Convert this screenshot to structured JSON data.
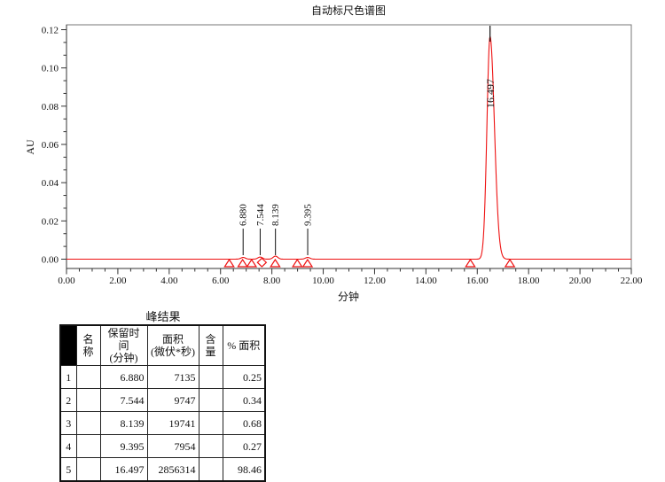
{
  "page": {
    "background": "#ffffff"
  },
  "chart_data": {
    "type": "line",
    "title": "自动标尺色谱图",
    "xlabel": "分钟",
    "ylabel": "AU",
    "xlim": [
      0,
      22
    ],
    "ylim": [
      -0.005,
      0.1225
    ],
    "grid": false,
    "legend": "none",
    "trace_color": "#ee1111",
    "axis_color": "#666666",
    "x_tick_values": [
      0,
      2,
      4,
      6,
      8,
      10,
      12,
      14,
      16,
      18,
      20,
      22
    ],
    "x_tick_labels": [
      "0.00",
      "2.00",
      "4.00",
      "6.00",
      "8.00",
      "10.00",
      "12.00",
      "14.00",
      "16.00",
      "18.00",
      "20.00",
      "22.00"
    ],
    "x_minor_step": 0.5,
    "y_tick_values": [
      0,
      0.02,
      0.04,
      0.06,
      0.08,
      0.1,
      0.12
    ],
    "y_tick_labels": [
      "0.00",
      "0.02",
      "0.04",
      "0.06",
      "0.08",
      "0.10",
      "0.12"
    ],
    "peaks": [
      {
        "label": "6.880",
        "rt": 6.88,
        "height_au": 0.0009,
        "sigma_left": 0.09,
        "sigma_right": 0.09
      },
      {
        "label": "7.544",
        "rt": 7.544,
        "height_au": 0.0011,
        "sigma_left": 0.09,
        "sigma_right": 0.09
      },
      {
        "label": "8.139",
        "rt": 8.139,
        "height_au": 0.0016,
        "sigma_left": 0.09,
        "sigma_right": 0.09
      },
      {
        "label": "9.395",
        "rt": 9.395,
        "height_au": 0.0009,
        "sigma_left": 0.09,
        "sigma_right": 0.09
      },
      {
        "label": "16.497",
        "rt": 16.497,
        "height_au": 0.1165,
        "sigma_left": 0.12,
        "sigma_right": 0.17
      }
    ],
    "integration_markers": {
      "triangles_min": [
        6.34,
        6.86,
        7.21,
        8.13,
        8.99,
        9.39,
        15.73,
        17.27
      ],
      "diamonds_min": [
        7.61
      ]
    }
  },
  "table": {
    "title": "峰结果",
    "columns": [
      "",
      "名称",
      "保留时间\n(分钟)",
      "面积\n(微伏*秒)",
      "含量",
      "% 面积"
    ],
    "rows": [
      [
        "1",
        "",
        "6.880",
        "7135",
        "",
        "0.25"
      ],
      [
        "2",
        "",
        "7.544",
        "9747",
        "",
        "0.34"
      ],
      [
        "3",
        "",
        "8.139",
        "19741",
        "",
        "0.68"
      ],
      [
        "4",
        "",
        "9.395",
        "7954",
        "",
        "0.27"
      ],
      [
        "5",
        "",
        "16.497",
        "2856314",
        "",
        "98.46"
      ]
    ]
  }
}
